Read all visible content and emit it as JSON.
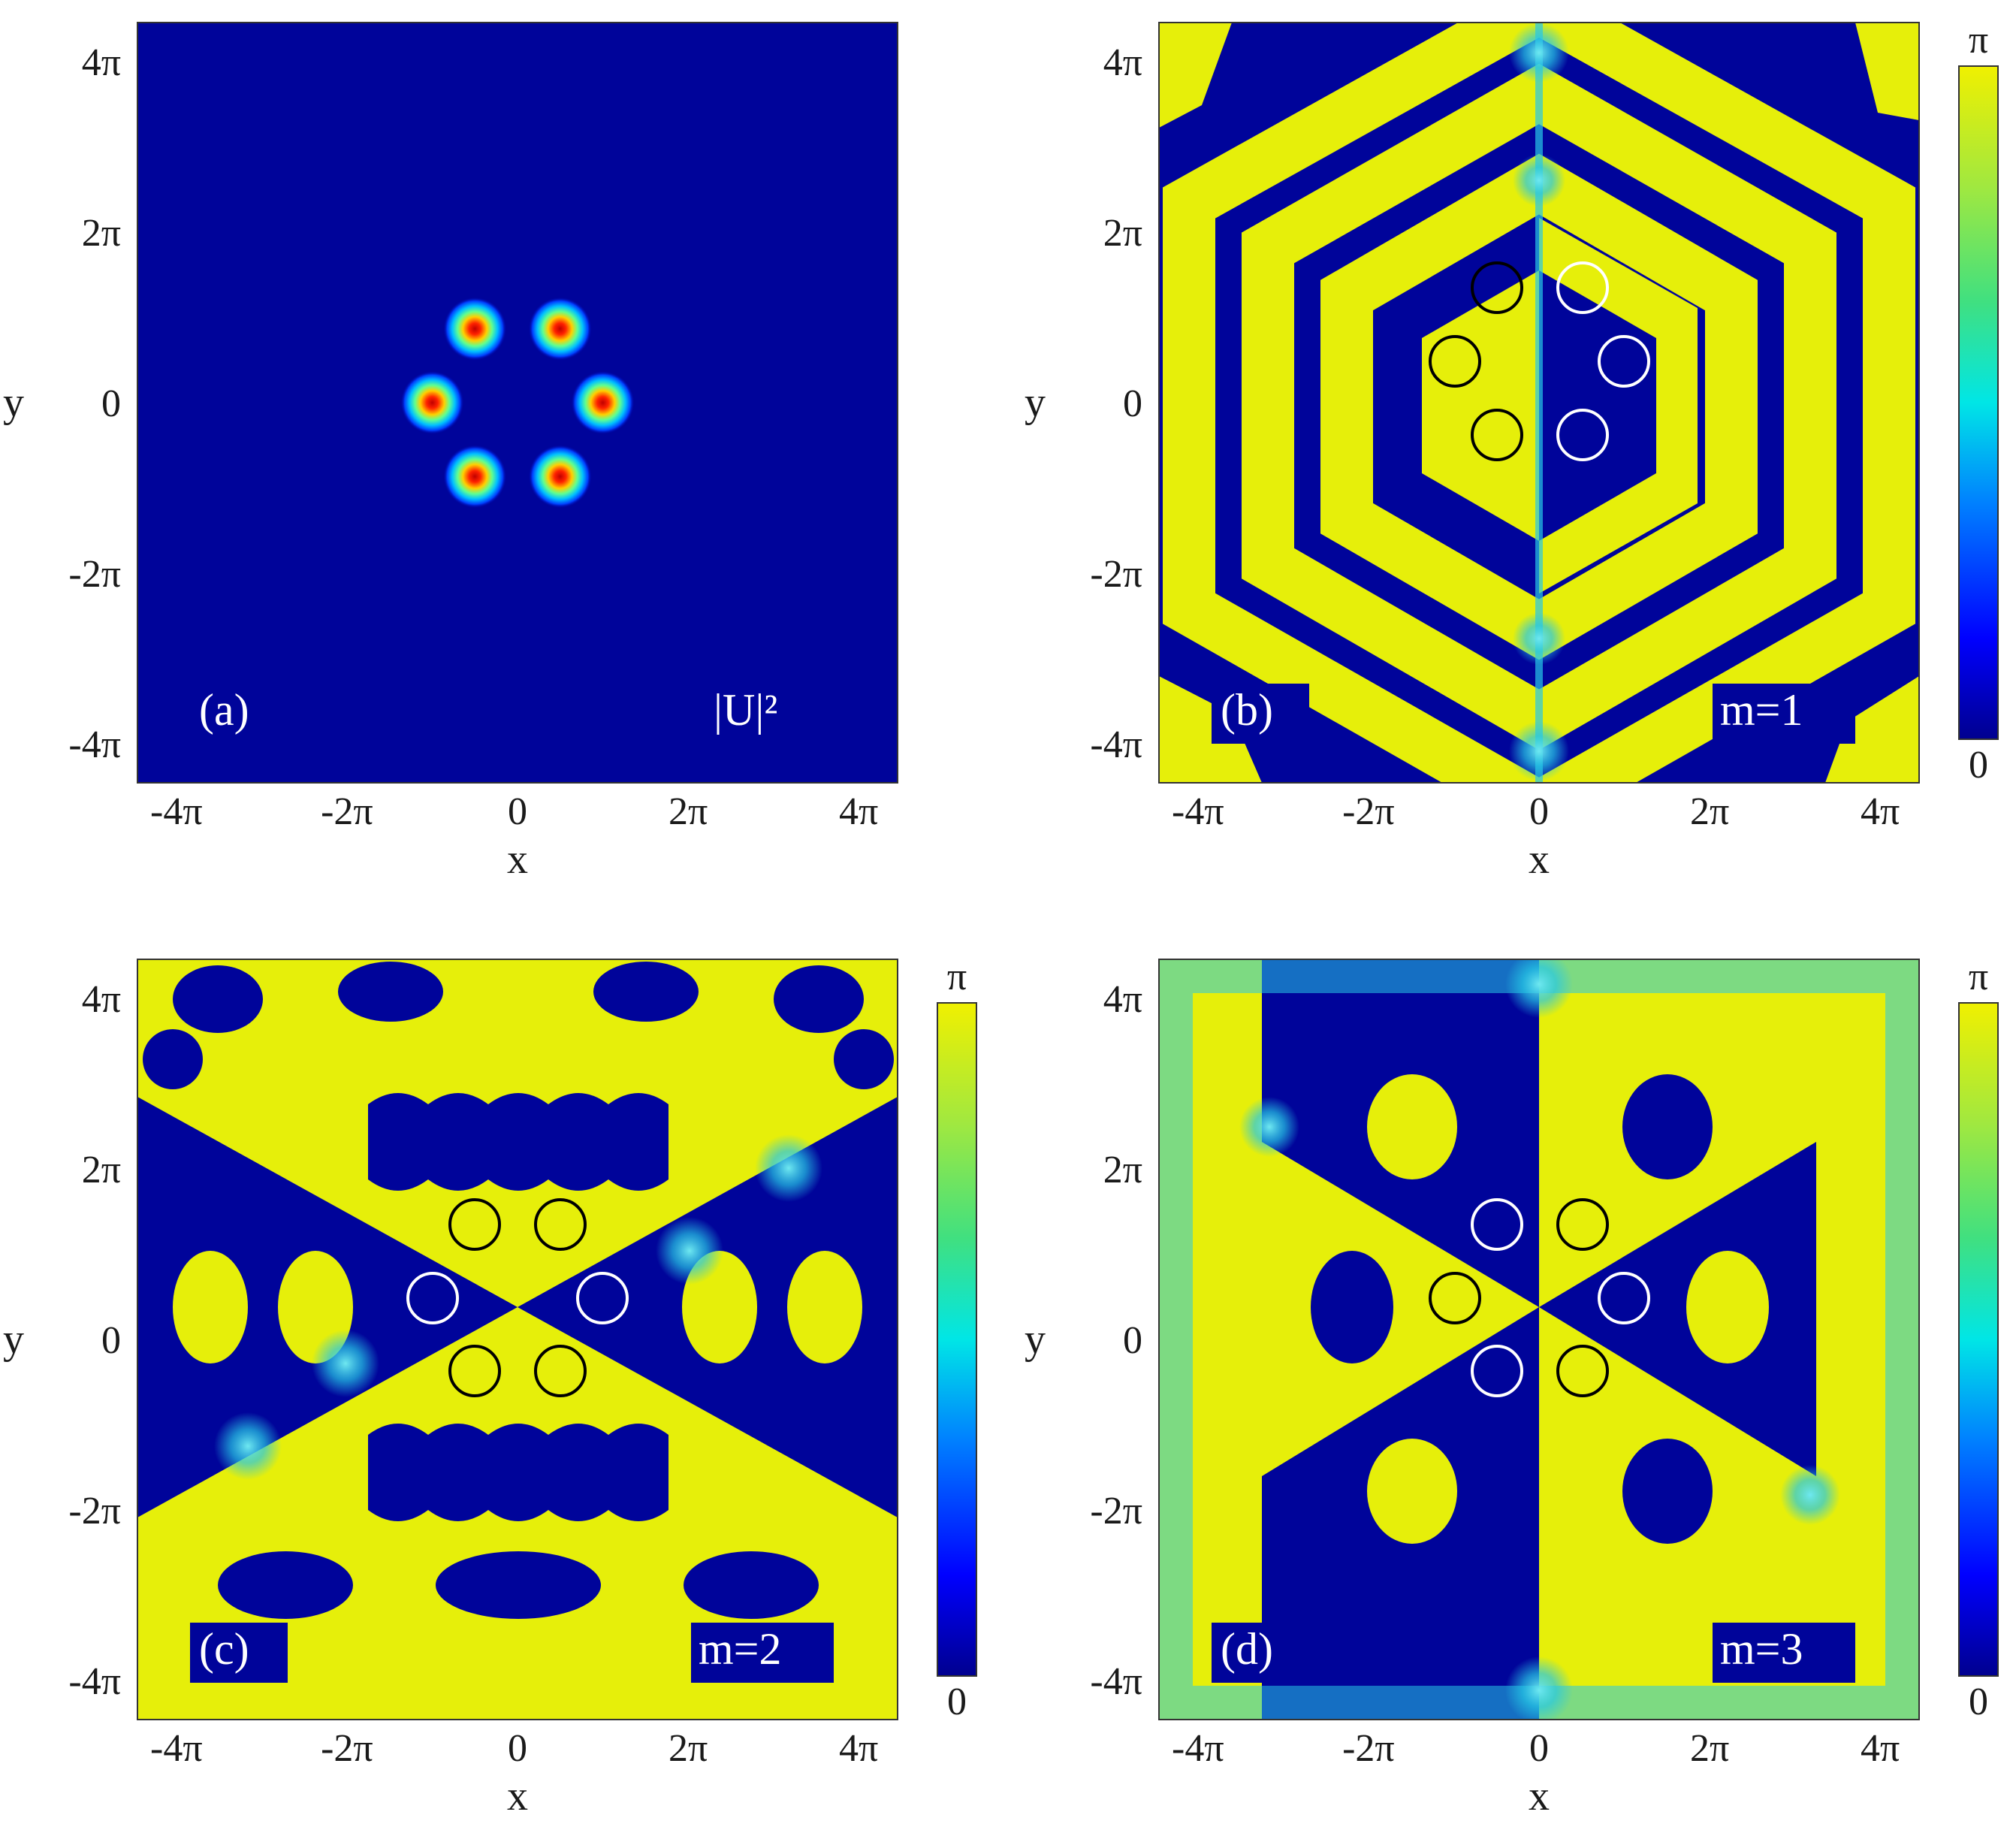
{
  "chart_data": [
    {
      "type": "heatmap",
      "panel": "(a)",
      "annotation": "|U|²",
      "xlabel": "x",
      "ylabel": "y",
      "xticks": [
        "-4π",
        "-2π",
        "0",
        "2π",
        "4π"
      ],
      "yticks": [
        "4π",
        "2π",
        "0",
        "-2π",
        "-4π"
      ],
      "xlim": [
        -14,
        14
      ],
      "ylim": [
        -14,
        14
      ],
      "colormap": "jet",
      "peaks": [
        {
          "x": -1.57,
          "y": 2.72
        },
        {
          "x": 1.57,
          "y": 2.72
        },
        {
          "x": -3.14,
          "y": 0.0
        },
        {
          "x": 3.14,
          "y": 0.0
        },
        {
          "x": -1.57,
          "y": -2.72
        },
        {
          "x": 1.57,
          "y": -2.72
        }
      ]
    },
    {
      "type": "heatmap",
      "panel": "(b)",
      "annotation": "m=1",
      "xlabel": "x",
      "ylabel": "y",
      "xticks": [
        "-4π",
        "-2π",
        "0",
        "2π",
        "4π"
      ],
      "yticks": [
        "4π",
        "2π",
        "0",
        "-2π",
        "-4π"
      ],
      "xlim": [
        -14,
        14
      ],
      "ylim": [
        -14,
        14
      ],
      "colormap": "jet",
      "colorbar": {
        "min_label": "0",
        "max_label": "π"
      }
    },
    {
      "type": "heatmap",
      "panel": "(c)",
      "annotation": "m=2",
      "xlabel": "x",
      "ylabel": "y",
      "xticks": [
        "-4π",
        "-2π",
        "0",
        "2π",
        "4π"
      ],
      "yticks": [
        "4π",
        "2π",
        "0",
        "-2π",
        "-4π"
      ],
      "xlim": [
        -14,
        14
      ],
      "ylim": [
        -14,
        14
      ],
      "colormap": "jet",
      "colorbar": {
        "min_label": "0",
        "max_label": "π"
      }
    },
    {
      "type": "heatmap",
      "panel": "(d)",
      "annotation": "m=3",
      "xlabel": "x",
      "ylabel": "y",
      "xticks": [
        "-4π",
        "-2π",
        "0",
        "2π",
        "4π"
      ],
      "yticks": [
        "4π",
        "2π",
        "0",
        "-2π",
        "-4π"
      ],
      "xlim": [
        -14,
        14
      ],
      "ylim": [
        -14,
        14
      ],
      "colormap": "jet",
      "colorbar": {
        "min_label": "0",
        "max_label": "π"
      }
    }
  ],
  "colors": {
    "dark_blue": "#00049a",
    "yellow": "#e6ef0a",
    "cyan": "#26d9e6",
    "red": "#d81c08",
    "ring_black": "#000000",
    "ring_white": "#ffffff"
  }
}
